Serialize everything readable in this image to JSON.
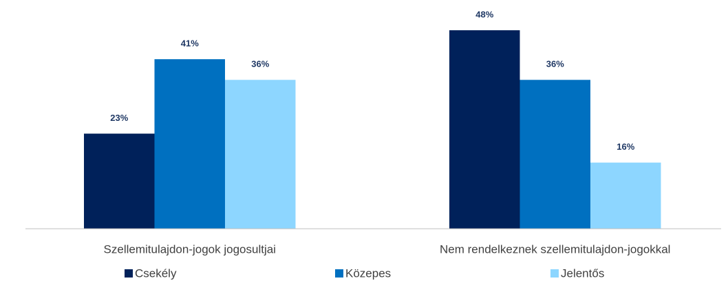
{
  "chart_data": {
    "type": "bar",
    "categories": [
      "Szellemitulajdon-jogok jogosultjai",
      "Nem rendelkeznek szellemitulajdon-jogokkal"
    ],
    "series": [
      {
        "name": "Csekély",
        "color": "#00215a",
        "values": [
          23,
          48
        ],
        "value_labels": [
          "23%",
          "48%"
        ]
      },
      {
        "name": "Közepes",
        "color": "#0070c0",
        "values": [
          41,
          36
        ],
        "value_labels": [
          "41%",
          "36%"
        ]
      },
      {
        "name": "Jelentős",
        "color": "#8dd6ff",
        "values": [
          36,
          16
        ],
        "value_labels": [
          "36%",
          "16%"
        ]
      }
    ],
    "legend": "bottom"
  }
}
